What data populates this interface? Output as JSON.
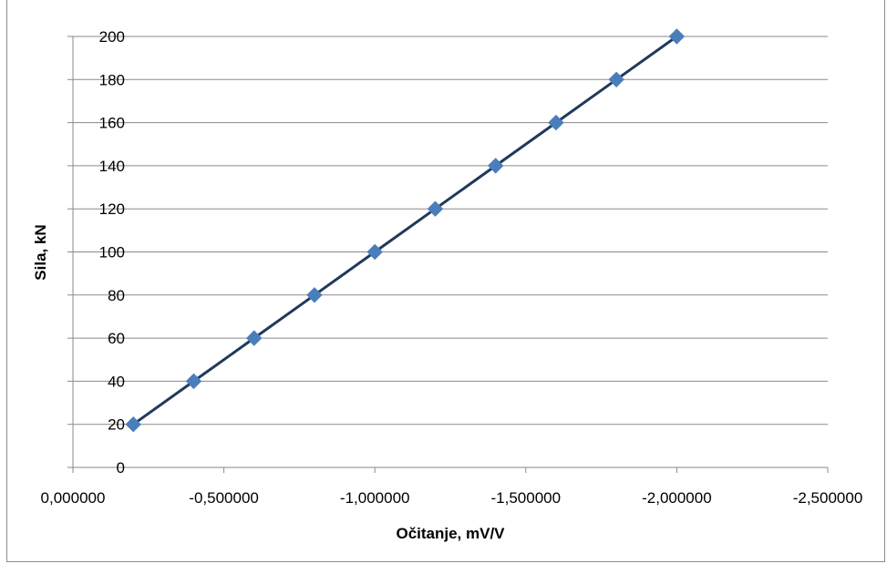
{
  "chart_data": {
    "type": "line",
    "xlabel": "Očitanje, mV/V",
    "ylabel": "Sila, kN",
    "xlim": [
      0,
      -2.5
    ],
    "ylim": [
      0,
      200
    ],
    "x_ticks": [
      0,
      -0.5,
      -1,
      -1.5,
      -2,
      -2.5
    ],
    "x_tick_labels": [
      "0,000000",
      "-0,500000",
      "-1,000000",
      "-1,500000",
      "-2,000000",
      "-2,500000"
    ],
    "y_ticks": [
      0,
      20,
      40,
      60,
      80,
      100,
      120,
      140,
      160,
      180,
      200
    ],
    "y_tick_labels": [
      "0",
      "20",
      "40",
      "60",
      "80",
      "100",
      "120",
      "140",
      "160",
      "180",
      "200"
    ],
    "grid": "horizontal",
    "legend": "none",
    "series": [
      {
        "x": [
          -0.2,
          -0.4,
          -0.6,
          -0.8,
          -1.0,
          -1.2,
          -1.4,
          -1.6,
          -1.8,
          -2.0
        ],
        "y": [
          20,
          40,
          60,
          80,
          100,
          120,
          140,
          160,
          180,
          200
        ],
        "marker": "diamond",
        "marker_color": "#4a7ebb",
        "line_color": "#1f3a5a"
      }
    ]
  }
}
